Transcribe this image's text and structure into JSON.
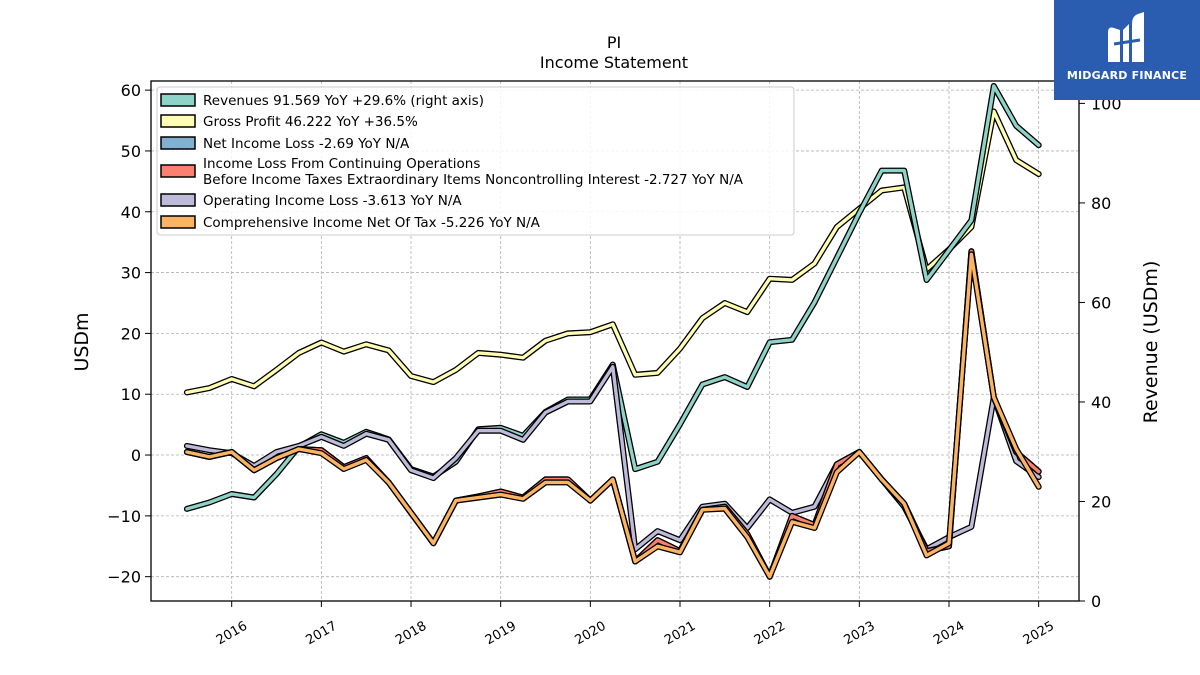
{
  "chart_data": {
    "type": "line",
    "title": "PI",
    "subtitle": "Income Statement",
    "ylabel": "USDm",
    "y2label": "Revenue (USDm)",
    "ylim": [
      -24,
      61.5
    ],
    "y2lim": [
      0,
      104.5
    ],
    "yticks": [
      -20,
      -10,
      0,
      10,
      20,
      30,
      40,
      50,
      60
    ],
    "yticklabels": [
      "−20",
      "−10",
      "0",
      "10",
      "20",
      "30",
      "40",
      "50",
      "60"
    ],
    "y2ticks": [
      0,
      20,
      40,
      60,
      80,
      100
    ],
    "xlim": [
      2015.1,
      2025.45
    ],
    "xticks": [
      2016,
      2017,
      2018,
      2019,
      2020,
      2021,
      2022,
      2023,
      2024,
      2025
    ],
    "xticklabels": [
      "2016",
      "2017",
      "2018",
      "2019",
      "2020",
      "2021",
      "2022",
      "2023",
      "2024",
      "2025"
    ],
    "grid": true,
    "legend_position": "top-left",
    "x": [
      2015.5,
      2015.75,
      2016.0,
      2016.25,
      2016.5,
      2016.75,
      2017.0,
      2017.25,
      2017.5,
      2017.75,
      2018.0,
      2018.25,
      2018.5,
      2018.75,
      2019.0,
      2019.25,
      2019.5,
      2019.75,
      2020.0,
      2020.25,
      2020.5,
      2020.75,
      2021.0,
      2021.25,
      2021.5,
      2021.75,
      2022.0,
      2022.25,
      2022.5,
      2022.75,
      2023.0,
      2023.25,
      2023.5,
      2023.75,
      2024.0,
      2024.25,
      2024.5,
      2024.75,
      2025.0
    ],
    "series": [
      {
        "name": "Revenues  91.569 YoY +29.6% (right axis)",
        "axis": "right",
        "color": "#8dd3c7",
        "values": [
          18.5,
          19.8,
          21.5,
          20.8,
          25.5,
          31.0,
          33.5,
          31.8,
          34.0,
          32.5,
          26.5,
          25.0,
          28.0,
          34.5,
          34.8,
          33.2,
          38.0,
          40.5,
          40.5,
          47.5,
          26.5,
          28.0,
          35.5,
          43.5,
          45.0,
          43.0,
          52.0,
          52.5,
          60.0,
          69.0,
          78.0,
          86.5,
          86.5,
          64.5,
          70.5,
          76.5,
          103.5,
          95.5,
          91.6
        ]
      },
      {
        "name": "Gross Profit  46.222 YoY +36.5%",
        "axis": "left",
        "color": "#ffffb3",
        "values": [
          10.3,
          11.0,
          12.5,
          11.3,
          14.0,
          16.8,
          18.5,
          17.0,
          18.2,
          17.2,
          13.0,
          12.0,
          14.0,
          16.8,
          16.5,
          16.0,
          18.8,
          20.0,
          20.2,
          21.5,
          13.2,
          13.5,
          17.5,
          22.5,
          25.0,
          23.5,
          29.0,
          28.8,
          31.5,
          37.5,
          40.5,
          43.5,
          44.0,
          30.5,
          33.8,
          37.5,
          56.5,
          48.5,
          46.2
        ]
      },
      {
        "name": "Net Income Loss  -2.69 YoY N/A",
        "axis": "left",
        "color": "#80b1d3",
        "values": [
          0.5,
          -0.3,
          0.5,
          -2.5,
          -0.5,
          1.0,
          0.8,
          -2.0,
          -0.5,
          -4.5,
          -9.5,
          -14.5,
          -7.5,
          -6.8,
          -6.0,
          -7.0,
          -4.0,
          -4.0,
          -7.5,
          -4.0,
          -17.5,
          -14.0,
          -15.8,
          -9.0,
          -8.5,
          -13.0,
          -20.0,
          -10.0,
          -11.5,
          -1.5,
          0.5,
          -4.0,
          -8.0,
          -15.8,
          -15.0,
          33.5,
          9.5,
          0.5,
          -2.69
        ]
      },
      {
        "name": "Income Loss From Continuing Operations\nBefore Income Taxes Extraordinary Items Noncontrolling Interest  -2.727 YoY N/A",
        "axis": "left",
        "color": "#fb8072",
        "values": [
          0.5,
          -0.3,
          0.5,
          -2.5,
          -0.5,
          1.0,
          0.8,
          -2.0,
          -0.5,
          -4.5,
          -9.5,
          -14.5,
          -7.5,
          -6.8,
          -6.0,
          -7.0,
          -4.0,
          -4.0,
          -7.5,
          -4.0,
          -17.5,
          -14.0,
          -15.8,
          -9.0,
          -8.5,
          -13.0,
          -20.0,
          -10.0,
          -11.5,
          -1.5,
          0.5,
          -4.0,
          -8.0,
          -15.8,
          -15.0,
          33.5,
          9.5,
          0.5,
          -2.727
        ]
      },
      {
        "name": "Operating Income Loss  -3.613 YoY N/A",
        "axis": "left",
        "color": "#bebada",
        "values": [
          1.5,
          0.8,
          0.3,
          -1.8,
          0.5,
          1.5,
          3.0,
          1.5,
          3.5,
          2.5,
          -2.5,
          -3.8,
          -0.5,
          4.0,
          4.0,
          2.5,
          7.0,
          8.8,
          8.8,
          14.5,
          -15.5,
          -12.5,
          -14.0,
          -8.5,
          -8.0,
          -12.0,
          -7.3,
          -9.5,
          -8.5,
          -1.5,
          0.5,
          -4.0,
          -8.5,
          -15.5,
          -13.5,
          -11.8,
          9.5,
          -1.0,
          -3.613
        ]
      },
      {
        "name": "Comprehensive Income Net Of Tax  -5.226 YoY N/A",
        "axis": "left",
        "color": "#fdb462",
        "values": [
          0.5,
          -0.3,
          0.5,
          -2.5,
          -0.5,
          1.0,
          0.3,
          -2.3,
          -0.8,
          -4.5,
          -9.5,
          -14.5,
          -7.5,
          -7.0,
          -6.5,
          -7.2,
          -4.5,
          -4.5,
          -7.5,
          -4.0,
          -17.5,
          -15.0,
          -16.0,
          -9.0,
          -8.8,
          -13.5,
          -20.0,
          -11.0,
          -12.0,
          -2.8,
          0.5,
          -4.0,
          -8.0,
          -16.5,
          -14.5,
          33.0,
          9.5,
          1.0,
          -5.226
        ]
      }
    ]
  },
  "logo": {
    "brand": "MIDGARD FINANCE"
  }
}
